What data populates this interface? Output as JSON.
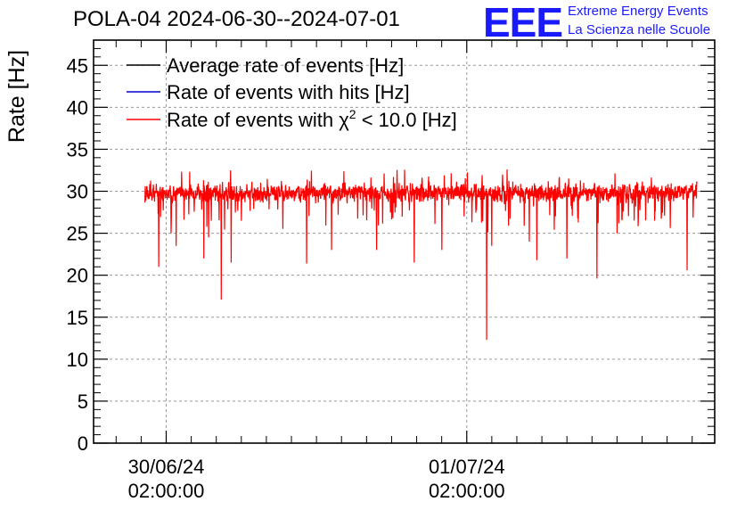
{
  "header": {
    "title": "POLA-04 2024-06-30--2024-07-01",
    "logo_letters": "EEE",
    "logo_line1": "Extreme Energy Events",
    "logo_line2": "La Scienza nelle Scuole"
  },
  "colors": {
    "avg": "#000000",
    "hits": "#0000cc",
    "chi2": "#ff0000",
    "logo": "#1a1aff",
    "grid": "#9a9a9a"
  },
  "chart_data": {
    "type": "line",
    "title": "POLA-04 2024-06-30--2024-07-01",
    "ylabel": "Rate [Hz]",
    "xlabel": "",
    "ylim": [
      0,
      48
    ],
    "yticks": [
      0,
      5,
      10,
      15,
      20,
      25,
      30,
      35,
      40,
      45
    ],
    "xlim_hours": [
      -2.9,
      21.9
    ],
    "xticks": [
      {
        "hour": 0,
        "label_date": "30/06/24",
        "label_time": "02:00:00"
      },
      {
        "hour": 12,
        "label_date": "01/07/24",
        "label_time": "02:00:00"
      }
    ],
    "x_minor_step_hours": 1,
    "grid": true,
    "legend_position": "top-left",
    "legend": [
      {
        "label": "Average rate of events [Hz]",
        "color": "#000000"
      },
      {
        "label": "Rate of events with hits [Hz]",
        "color": "#0000cc"
      },
      {
        "label_prefix": "Rate of events with ",
        "label_symbol": "χ",
        "label_sup": "2",
        "label_suffix": " < 10.0 [Hz]",
        "color": "#ff0000"
      }
    ],
    "series_summary": {
      "start_hour": -0.85,
      "end_hour": 21.2,
      "baseline_hz": 29.8,
      "noise_hz": 0.8
    },
    "dips": [
      {
        "hour": -0.3,
        "value": 21.0
      },
      {
        "hour": 0.2,
        "value": 25.0
      },
      {
        "hour": 0.4,
        "value": 23.5
      },
      {
        "hour": 1.5,
        "value": 22.0
      },
      {
        "hour": 1.7,
        "value": 24.5
      },
      {
        "hour": 2.2,
        "value": 17.1
      },
      {
        "hour": 2.6,
        "value": 21.5
      },
      {
        "hour": 3.0,
        "value": 26.5
      },
      {
        "hour": 5.6,
        "value": 21.4
      },
      {
        "hour": 6.6,
        "value": 23.0
      },
      {
        "hour": 8.4,
        "value": 23.0
      },
      {
        "hour": 9.9,
        "value": 21.5
      },
      {
        "hour": 11.0,
        "value": 23.0
      },
      {
        "hour": 12.8,
        "value": 12.3
      },
      {
        "hour": 13.0,
        "value": 23.5
      },
      {
        "hour": 14.5,
        "value": 24.0
      },
      {
        "hour": 14.8,
        "value": 21.8
      },
      {
        "hour": 16.0,
        "value": 22.0
      },
      {
        "hour": 17.2,
        "value": 19.6
      },
      {
        "hour": 18.0,
        "value": 25.0
      },
      {
        "hour": 19.5,
        "value": 26.5
      },
      {
        "hour": 20.8,
        "value": 20.6
      }
    ]
  }
}
